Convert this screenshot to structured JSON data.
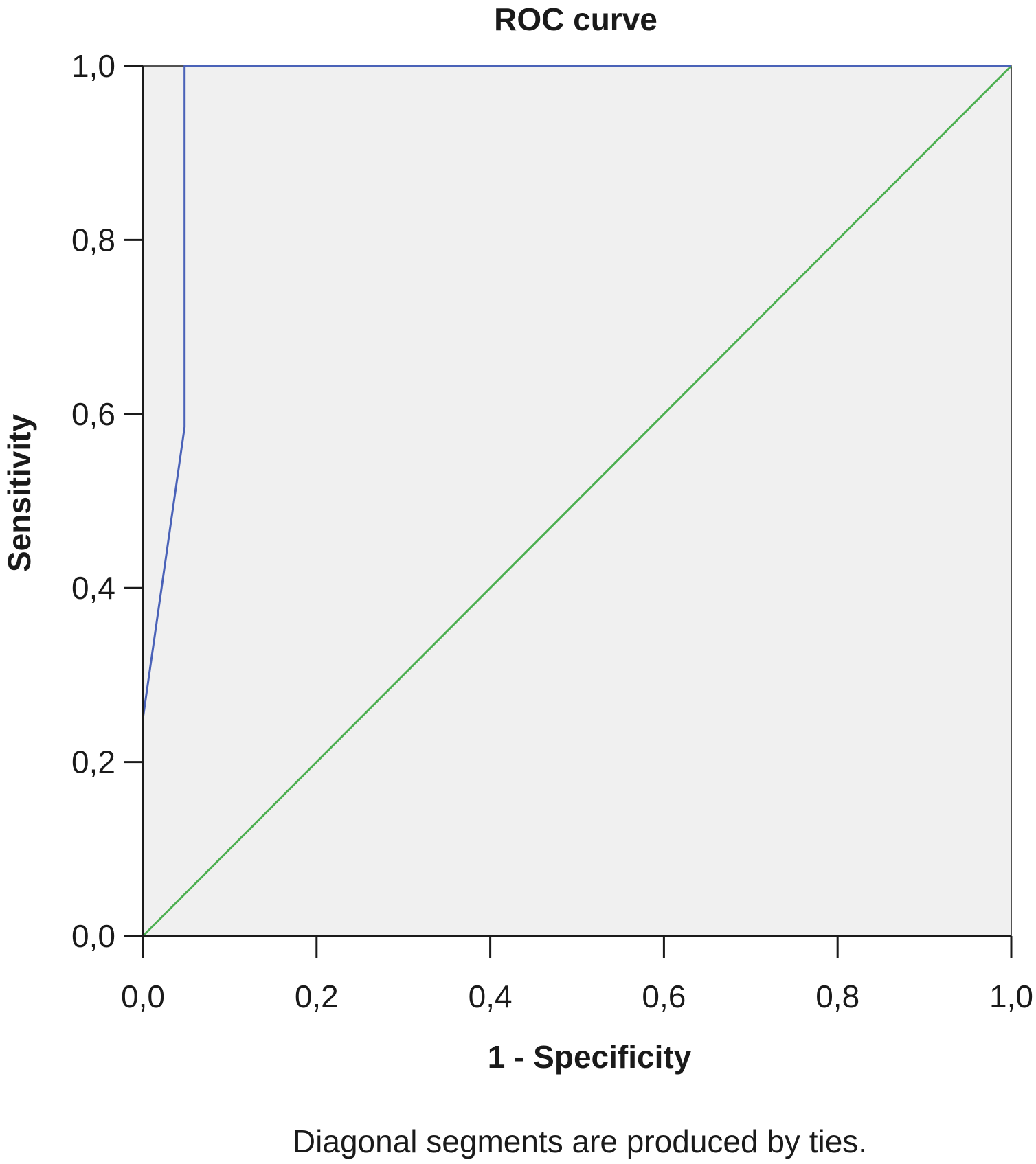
{
  "chart_data": {
    "type": "line",
    "title": "ROC curve",
    "xlabel": "1 - Specificity",
    "ylabel": "Sensitivity",
    "xlim": [
      0,
      1
    ],
    "ylim": [
      0,
      1
    ],
    "xticks": [
      "0,0",
      "0,2",
      "0,4",
      "0,6",
      "0,8",
      "1,0"
    ],
    "yticks": [
      "0,0",
      "0,2",
      "0,4",
      "0,6",
      "0,8",
      "1,0"
    ],
    "tick_values": [
      0,
      0.2,
      0.4,
      0.6,
      0.8,
      1.0
    ],
    "grid": false,
    "series": [
      {
        "color": "#4a62b8",
        "x": [
          0.0,
          0.0,
          0.048,
          0.048,
          1.0
        ],
        "y": [
          0.0,
          0.25,
          0.585,
          1.0,
          1.0
        ]
      },
      {
        "color": "#4caf50",
        "x": [
          0.0,
          1.0
        ],
        "y": [
          0.0,
          1.0
        ]
      }
    ],
    "annotations": [
      "Diagonal segments are produced by ties."
    ],
    "plot_background": "#f0f0f0"
  }
}
